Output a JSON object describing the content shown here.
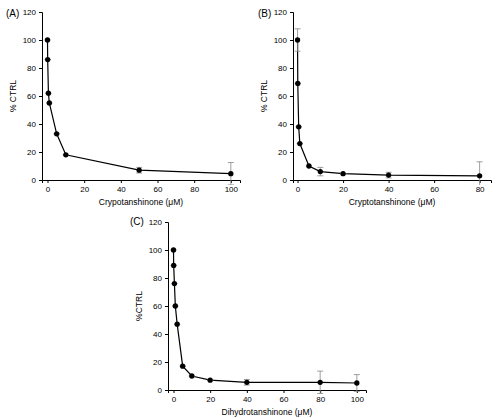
{
  "chart_data": [
    {
      "type": "line",
      "title": "(A)",
      "x_label": "Crypotanshinone (μM)",
      "y_label": "% CTRL",
      "x": [
        0,
        0.1,
        0.5,
        1,
        5,
        10,
        50,
        100
      ],
      "values": [
        100,
        86,
        62,
        55,
        33,
        18,
        7,
        4.5
      ],
      "errors": [
        0,
        0,
        0,
        0,
        0,
        0,
        2,
        8
      ],
      "xlim": [
        -3,
        105
      ],
      "ylim": [
        0,
        120
      ],
      "xticks": [
        0,
        20,
        40,
        60,
        80,
        100
      ],
      "yticks": [
        0,
        20,
        40,
        60,
        80,
        100,
        120
      ],
      "color": "#000000",
      "marker": "circle",
      "line_style": "solid"
    },
    {
      "type": "line",
      "title": "(B)",
      "x_label": "Cryptotanshinone (μM)",
      "y_label": "% CTRL",
      "x": [
        0,
        0.1,
        0.5,
        1,
        5,
        10,
        20,
        40,
        80
      ],
      "values": [
        100,
        69,
        38,
        26,
        10,
        6,
        4.5,
        3.5,
        3
      ],
      "errors": [
        8,
        0,
        0,
        0,
        0,
        3,
        0,
        2,
        10
      ],
      "xlim": [
        -2,
        85
      ],
      "ylim": [
        0,
        120
      ],
      "xticks": [
        0,
        20,
        40,
        60,
        80
      ],
      "yticks": [
        0,
        20,
        40,
        60,
        80,
        100,
        120
      ],
      "color": "#000000",
      "marker": "circle",
      "line_style": "solid"
    },
    {
      "type": "line",
      "title": "(C)",
      "x_label": "Dihydrotanshinone (μM)",
      "y_label": "%CTRL",
      "x": [
        0,
        0.1,
        0.5,
        1,
        2,
        5,
        10,
        20,
        40,
        80,
        100
      ],
      "values": [
        100,
        89,
        76,
        60,
        47,
        17,
        10,
        7,
        5.5,
        5.5,
        5
      ],
      "errors": [
        0,
        0,
        0,
        0,
        0,
        0,
        0,
        0,
        2,
        8,
        6
      ],
      "xlim": [
        -3,
        105
      ],
      "ylim": [
        0,
        120
      ],
      "xticks": [
        0,
        20,
        40,
        60,
        80,
        100
      ],
      "yticks": [
        0,
        20,
        40,
        60,
        80,
        100,
        120
      ],
      "color": "#000000",
      "marker": "circle",
      "line_style": "solid"
    }
  ]
}
